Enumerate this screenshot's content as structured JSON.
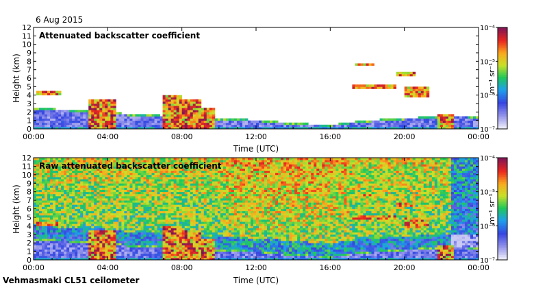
{
  "date_label": "6 Aug 2015",
  "footer": "Vehmasmaki CL51 ceilometer",
  "chart_data": [
    {
      "type": "heatmap",
      "title": "Attenuated backscatter coefficient",
      "xlabel": "Time (UTC)",
      "ylabel": "Height (km)",
      "xlim": [
        0,
        24
      ],
      "ylim": [
        0,
        12
      ],
      "x_ticks": [
        0,
        4,
        8,
        12,
        16,
        20,
        24
      ],
      "x_tick_labels": [
        "00:00",
        "04:00",
        "08:00",
        "12:00",
        "16:00",
        "20:00",
        "00:00"
      ],
      "y_ticks": [
        0,
        1,
        2,
        3,
        4,
        5,
        6,
        7,
        8,
        9,
        10,
        11,
        12
      ],
      "colorbar": {
        "unit": "m⁻¹ sr⁻¹",
        "range": [
          1e-07,
          0.0001
        ],
        "tick_labels": [
          "10⁻⁴",
          "10⁻⁵",
          "10⁻⁶",
          "10⁻⁷"
        ],
        "scale": "log"
      }
    },
    {
      "type": "heatmap",
      "title": "Raw attenuated backscatter coefficient",
      "xlabel": "Time (UTC)",
      "ylabel": "Height (km)",
      "xlim": [
        0,
        24
      ],
      "ylim": [
        0,
        12
      ],
      "x_ticks": [
        0,
        4,
        8,
        12,
        16,
        20,
        24
      ],
      "x_tick_labels": [
        "00:00",
        "04:00",
        "08:00",
        "12:00",
        "16:00",
        "20:00",
        "00:00"
      ],
      "y_ticks": [
        0,
        1,
        2,
        3,
        4,
        5,
        6,
        7,
        8,
        9,
        10,
        11,
        12
      ],
      "colorbar": {
        "unit": "m⁻¹ sr⁻¹",
        "range": [
          1e-07,
          0.0001
        ],
        "tick_labels": [
          "10⁻⁴",
          "10⁻⁵",
          "10⁻⁶",
          "10⁻⁷"
        ],
        "scale": "log"
      }
    }
  ],
  "features": {
    "boundary_layer_top": [
      [
        0,
        2.5
      ],
      [
        1,
        2.4
      ],
      [
        2,
        2.3
      ],
      [
        3,
        2.3
      ],
      [
        4,
        2.1
      ],
      [
        5,
        1.8
      ],
      [
        6,
        1.7
      ],
      [
        7,
        1.6
      ],
      [
        8,
        1.5
      ],
      [
        9,
        1.3
      ],
      [
        10,
        1.2
      ],
      [
        11,
        1.15
      ],
      [
        12,
        1.1
      ],
      [
        13,
        0.9
      ],
      [
        14,
        0.7
      ],
      [
        15,
        0.6
      ],
      [
        16,
        0.5
      ],
      [
        17,
        0.8
      ],
      [
        18,
        1.0
      ],
      [
        19,
        1.2
      ],
      [
        20,
        1.3
      ],
      [
        21,
        1.4
      ],
      [
        22,
        1.6
      ],
      [
        23,
        1.6
      ],
      [
        24,
        1.5
      ]
    ],
    "cloud_layers": [
      {
        "t0": 0.1,
        "t1": 1.5,
        "h": 4.3,
        "thick": 0.4
      },
      {
        "t0": 17.2,
        "t1": 19.5,
        "h": 5.0,
        "thick": 0.25
      },
      {
        "t0": 17.3,
        "t1": 18.4,
        "h": 7.7,
        "thick": 0.2
      },
      {
        "t0": 19.6,
        "t1": 20.6,
        "h": 6.5,
        "thick": 0.4
      },
      {
        "t0": 20.0,
        "t1": 21.4,
        "h": 4.4,
        "thick": 1.3
      }
    ],
    "precip_columns": [
      {
        "t0": 3.0,
        "t1": 4.4,
        "top": 3.6
      },
      {
        "t0": 6.9,
        "t1": 8.0,
        "top": 3.9
      },
      {
        "t0": 8.0,
        "t1": 9.0,
        "top": 3.6
      },
      {
        "t0": 9.0,
        "t1": 9.8,
        "top": 2.6
      },
      {
        "t0": 21.8,
        "t1": 22.6,
        "top": 1.8
      }
    ]
  }
}
